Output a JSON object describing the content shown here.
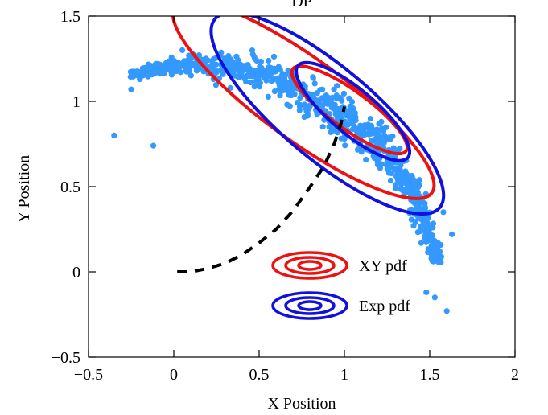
{
  "chart_data": {
    "type": "scatter",
    "title": "DP",
    "xlabel": "X Position",
    "ylabel": "Y Position",
    "xlim": [
      -0.5,
      2
    ],
    "ylim": [
      -0.5,
      1.5
    ],
    "xticks": [
      {
        "value": -0.5,
        "label": "−0.5"
      },
      {
        "value": 0,
        "label": "0"
      },
      {
        "value": 0.5,
        "label": "0.5"
      },
      {
        "value": 1,
        "label": "1"
      },
      {
        "value": 1.5,
        "label": "1.5"
      },
      {
        "value": 2,
        "label": "2"
      }
    ],
    "yticks": [
      {
        "value": -0.5,
        "label": "−0.5"
      },
      {
        "value": 0,
        "label": "0"
      },
      {
        "value": 0.5,
        "label": "0.5"
      },
      {
        "value": 1,
        "label": "1"
      },
      {
        "value": 1.5,
        "label": "1.5"
      }
    ],
    "grid": false,
    "legend": {
      "placement": "inside-bottom-center",
      "entries": [
        {
          "label": "XY pdf",
          "color": "#ee1111"
        },
        {
          "label": "Exp pdf",
          "color": "#1111dd"
        }
      ]
    },
    "scatter_color": "#3399ff",
    "scatter_cloud": {
      "spine": [
        [
          -0.25,
          1.16
        ],
        [
          0.1,
          1.22
        ],
        [
          0.4,
          1.2
        ],
        [
          0.7,
          1.08
        ],
        [
          1.0,
          0.9
        ],
        [
          1.2,
          0.75
        ],
        [
          1.35,
          0.55
        ],
        [
          1.45,
          0.35
        ],
        [
          1.55,
          0.05
        ]
      ],
      "half_width": [
        0.04,
        0.11,
        0.16,
        0.2,
        0.2,
        0.17,
        0.14,
        0.1,
        0.06
      ],
      "outliers": [
        [
          -0.35,
          0.8
        ],
        [
          -0.12,
          0.74
        ],
        [
          -0.25,
          1.07
        ],
        [
          -0.2,
          1.13
        ],
        [
          0.05,
          1.3
        ],
        [
          1.53,
          -0.15
        ],
        [
          1.6,
          -0.23
        ],
        [
          1.48,
          -0.12
        ],
        [
          1.63,
          0.22
        ],
        [
          1.58,
          0.35
        ]
      ]
    },
    "dashed_path": {
      "color": "#000000",
      "points": [
        [
          0.02,
          0.0
        ],
        [
          0.1,
          0.0
        ],
        [
          0.2,
          0.02
        ],
        [
          0.3,
          0.05
        ],
        [
          0.4,
          0.1
        ],
        [
          0.5,
          0.17
        ],
        [
          0.6,
          0.25
        ],
        [
          0.7,
          0.36
        ],
        [
          0.8,
          0.5
        ],
        [
          0.88,
          0.62
        ],
        [
          0.94,
          0.75
        ],
        [
          0.98,
          0.87
        ],
        [
          1.0,
          0.97
        ]
      ]
    },
    "series": [
      {
        "name": "XY pdf",
        "color": "#ee1111",
        "contours": [
          {
            "center": [
              0.76,
              1.01
            ],
            "rx": 0.93,
            "ry": 0.24,
            "angle_deg": 36
          },
          {
            "center": [
              1.03,
              0.95
            ],
            "rx": 0.41,
            "ry": 0.11,
            "angle_deg": 36
          }
        ]
      },
      {
        "name": "Exp pdf",
        "color": "#1111dd",
        "contours": [
          {
            "center": [
              0.9,
              0.93
            ],
            "rx": 0.86,
            "ry": 0.27,
            "angle_deg": 40
          },
          {
            "center": [
              1.05,
              0.94
            ],
            "rx": 0.42,
            "ry": 0.13,
            "angle_deg": 40
          }
        ]
      }
    ]
  }
}
